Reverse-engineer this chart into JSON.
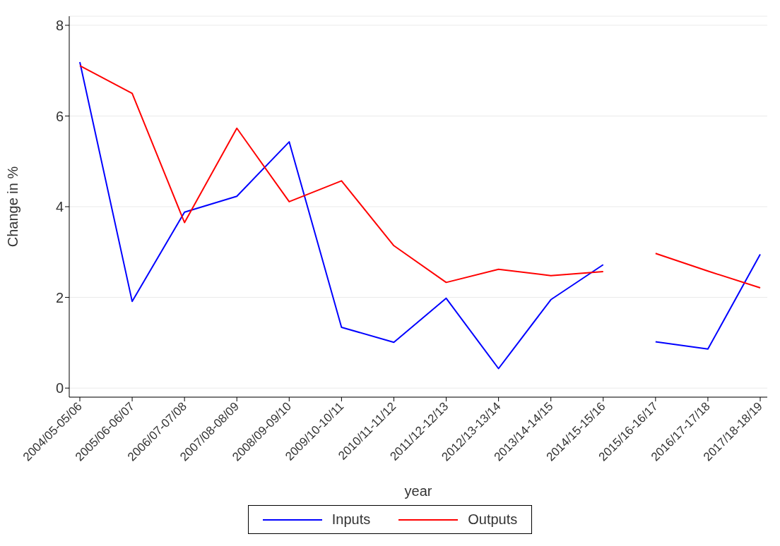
{
  "chart_data": {
    "type": "line",
    "xlabel": "year",
    "ylabel": "Change in %",
    "categories": [
      "2004/05-05/06",
      "2005/06-06/07",
      "2006/07-07/08",
      "2007/08-08/09",
      "2008/09-09/10",
      "2009/10-10/11",
      "2010/11-11/12",
      "2011/12-12/13",
      "2012/13-13/14",
      "2013/14-14/15",
      "2014/15-15/16",
      "2015/16-16/17",
      "2016/17-17/18",
      "2017/18-18/19"
    ],
    "series": [
      {
        "name": "Inputs",
        "color": "#0000ff",
        "values": [
          7.19,
          1.91,
          3.88,
          4.23,
          5.43,
          1.34,
          1.01,
          1.98,
          0.43,
          1.95,
          2.72,
          null,
          null,
          null
        ]
      },
      {
        "name": "Outputs",
        "color": "#ff0000",
        "values": [
          7.11,
          6.5,
          3.65,
          5.73,
          4.11,
          4.57,
          3.14,
          2.33,
          2.62,
          2.48,
          2.57,
          null,
          null,
          null
        ]
      },
      {
        "color": "#0000ff",
        "values": [
          null,
          null,
          null,
          null,
          null,
          null,
          null,
          null,
          null,
          null,
          null,
          1.02,
          0.86,
          2.95
        ]
      },
      {
        "color": "#ff0000",
        "values": [
          null,
          null,
          null,
          null,
          null,
          null,
          null,
          null,
          null,
          null,
          null,
          2.97,
          2.58,
          2.21
        ]
      }
    ],
    "ylim": [
      -0.2,
      8.2
    ],
    "yticks": [
      0,
      2,
      4,
      6,
      8
    ],
    "grid": "y",
    "legend": "bottom",
    "marker": "none",
    "line_style": "solid"
  }
}
